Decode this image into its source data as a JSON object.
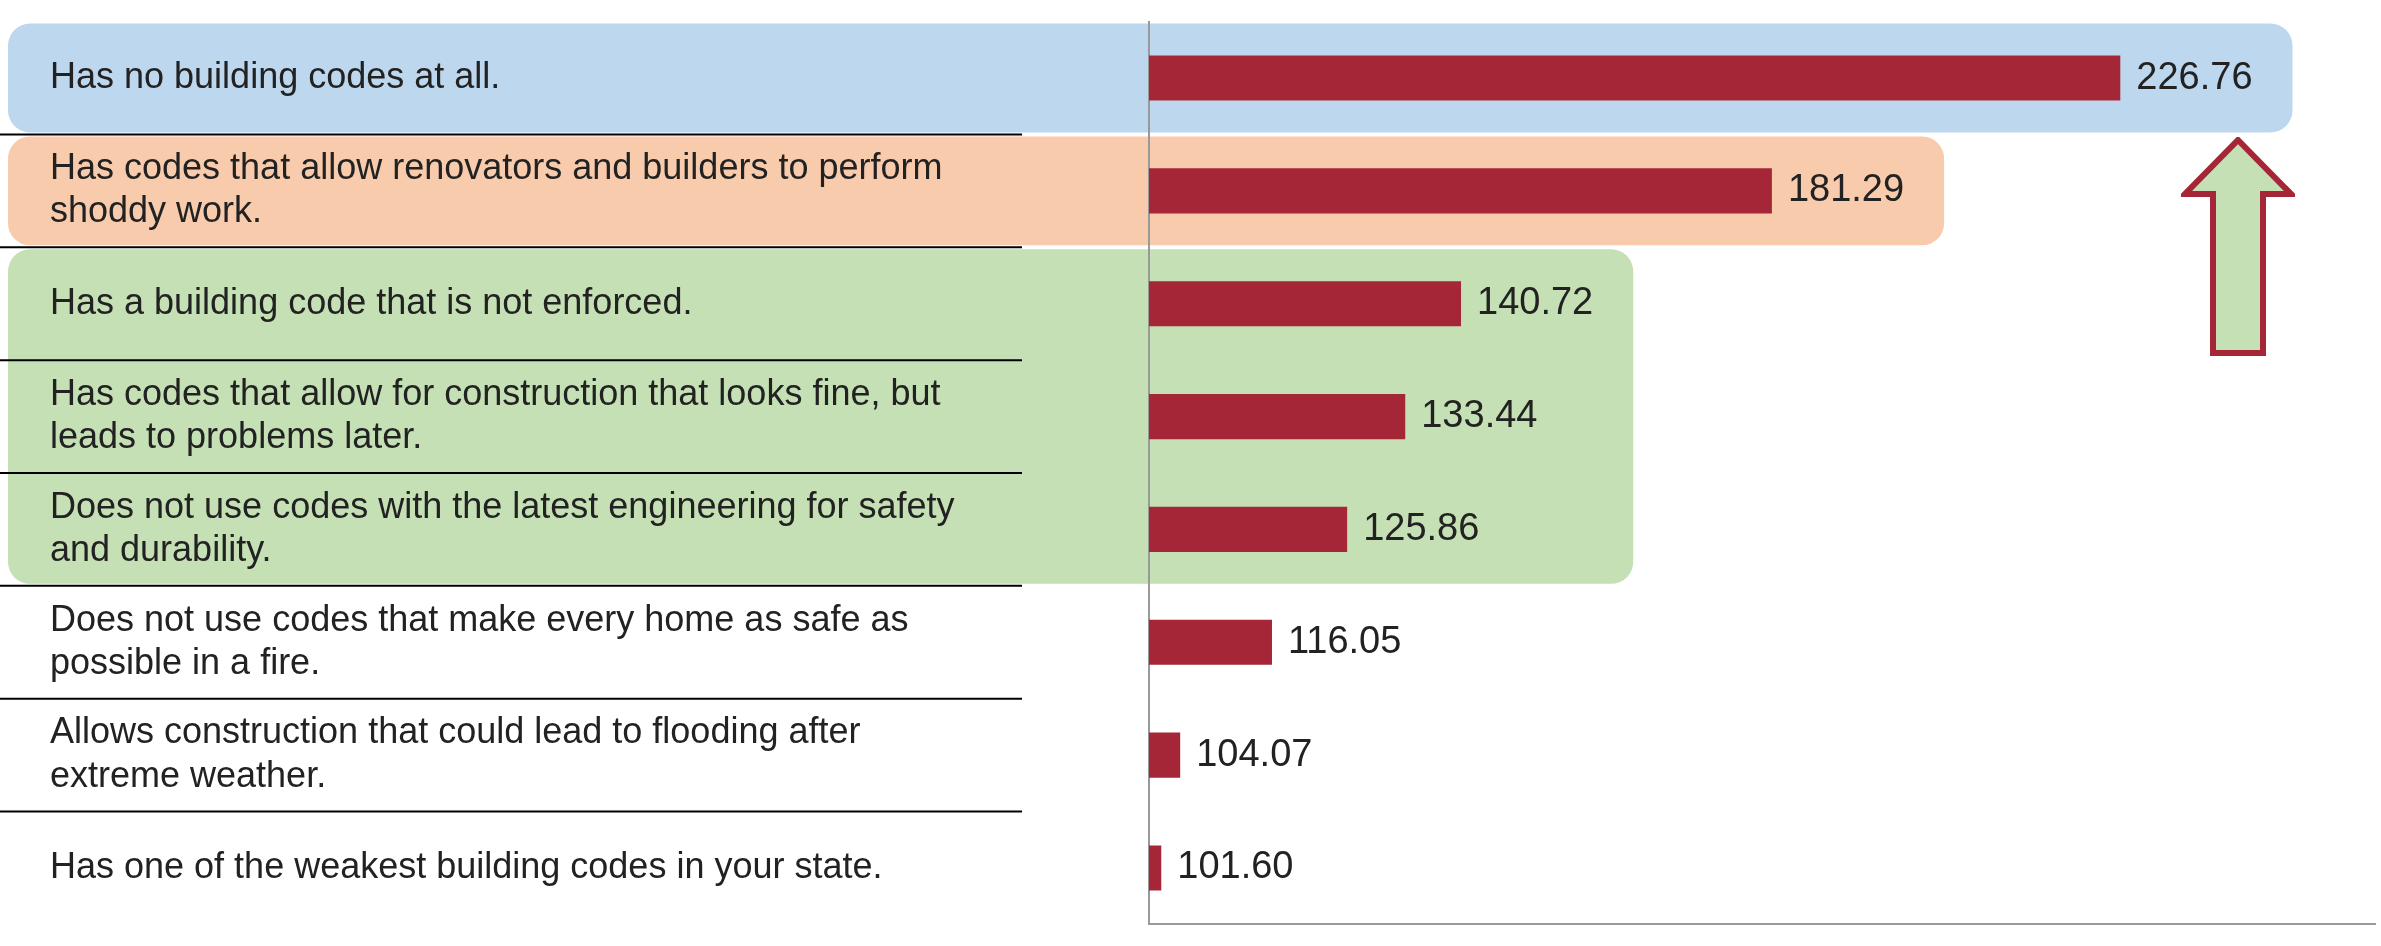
{
  "chart_data": {
    "type": "bar",
    "orientation": "horizontal",
    "tick_labels": "y",
    "legend": false,
    "grid": false,
    "categories": [
      "Has no building codes at all.",
      "Has codes that allow renovators and builders to perform shoddy work.",
      "Has a building code that is not enforced.",
      "Has codes that allow for construction that looks fine, but leads to problems later.",
      "Does not use codes with the latest engineering for safety and durability.",
      "Does not use codes that make every home as safe as possible in a fire.",
      "Allows construction that could lead to flooding after extreme weather.",
      "Has one of the weakest building codes in your state."
    ],
    "values": [
      226.76,
      181.29,
      140.72,
      133.44,
      125.86,
      116.05,
      104.07,
      101.6
    ],
    "value_labels": [
      "226.76",
      "181.29",
      "140.72",
      "133.44",
      "125.86",
      "116.05",
      "104.07",
      "101.60"
    ],
    "color": "#a52636",
    "xlim": [
      100,
      260
    ],
    "bands": [
      {
        "axis": "y",
        "from": "Has no building codes at all.",
        "to": "Has no building codes at all.",
        "color": "#bdd7ee"
      },
      {
        "axis": "y",
        "from": "Has codes that allow renovators and builders to perform shoddy work.",
        "to": "Has codes that allow renovators and builders to perform shoddy work.",
        "color": "#f8cbad"
      },
      {
        "axis": "y",
        "from": "Has a building code that is not enforced.",
        "to": "Does not use codes with the latest engineering for safety and durability.",
        "color": "#c5e0b4"
      }
    ]
  }
}
